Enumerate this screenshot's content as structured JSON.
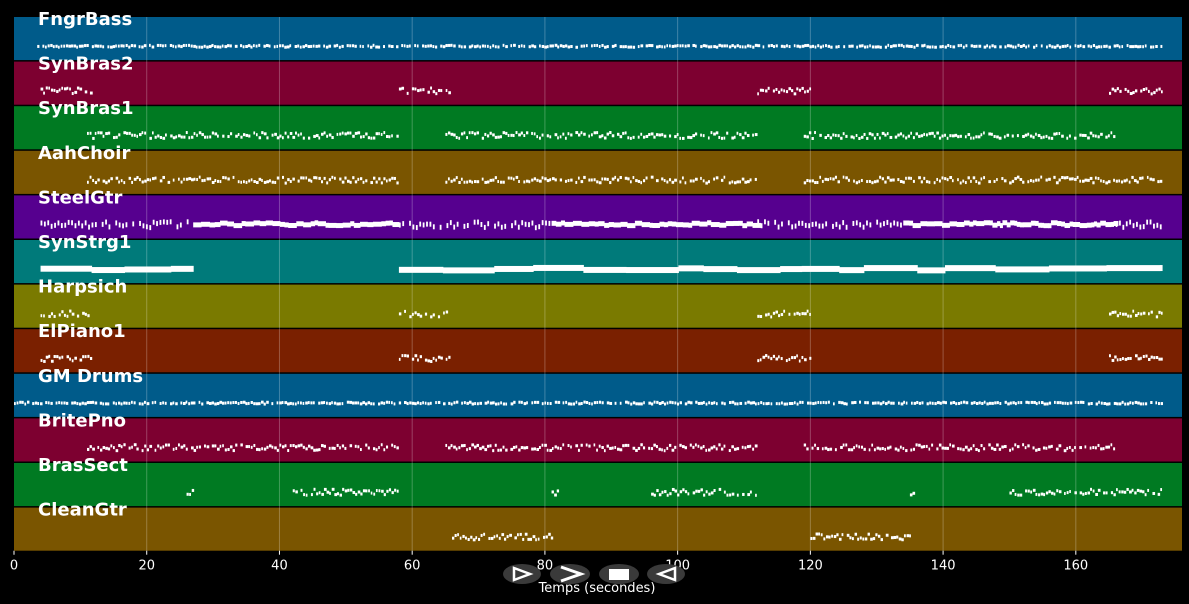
{
  "chart_data": {
    "type": "piano-roll",
    "xlabel": "Temps (secondes)",
    "xlim": [
      0,
      176
    ],
    "x_ticks": [
      0,
      20,
      40,
      60,
      80,
      100,
      120,
      140,
      160
    ],
    "grid": true,
    "tracks": [
      {
        "name": "FngrBass",
        "color": "#005b8a",
        "pattern": "continuous-dots",
        "segments": [
          [
            3.5,
            173
          ]
        ]
      },
      {
        "name": "SynBras2",
        "color": "#7d0030",
        "pattern": "dots",
        "segments": [
          [
            4,
            11.5
          ],
          [
            58,
            65.5
          ],
          [
            112,
            120
          ],
          [
            165,
            173
          ]
        ]
      },
      {
        "name": "SynBras1",
        "color": "#007a22",
        "pattern": "dots",
        "segments": [
          [
            11,
            58
          ],
          [
            65,
            112
          ],
          [
            119,
            166
          ]
        ]
      },
      {
        "name": "AahChoir",
        "color": "#7a5500",
        "pattern": "dots",
        "segments": [
          [
            11,
            58
          ],
          [
            65,
            112
          ],
          [
            119,
            173
          ]
        ]
      },
      {
        "name": "SteelGtr",
        "color": "#56008f",
        "pattern": "mixed",
        "segments": [
          [
            4,
            27
          ],
          [
            27,
            58
          ],
          [
            58,
            81
          ],
          [
            81,
            112
          ],
          [
            112,
            134
          ],
          [
            134,
            166
          ],
          [
            166,
            173
          ]
        ]
      },
      {
        "name": "SynStrg1",
        "color": "#007a7a",
        "pattern": "solid-bar",
        "segments": [
          [
            4,
            27
          ],
          [
            58,
            173
          ]
        ]
      },
      {
        "name": "Harpsich",
        "color": "#7a7a00",
        "pattern": "dots",
        "segments": [
          [
            4,
            11.5
          ],
          [
            58,
            65.5
          ],
          [
            112,
            120
          ],
          [
            165,
            173
          ]
        ]
      },
      {
        "name": "ElPiano1",
        "color": "#7a2000",
        "pattern": "dots",
        "segments": [
          [
            4,
            11.5
          ],
          [
            58,
            65.5
          ],
          [
            112,
            120
          ],
          [
            165,
            173
          ]
        ]
      },
      {
        "name": "GM Drums",
        "color": "#005b8a",
        "pattern": "continuous-dots",
        "segments": [
          [
            0,
            173
          ]
        ]
      },
      {
        "name": "BritePno",
        "color": "#7d0030",
        "pattern": "dots",
        "segments": [
          [
            11,
            58
          ],
          [
            65,
            112
          ],
          [
            119,
            166
          ]
        ]
      },
      {
        "name": "BrasSect",
        "color": "#007a22",
        "pattern": "dots",
        "segments": [
          [
            26,
            27
          ],
          [
            42,
            58
          ],
          [
            81,
            82
          ],
          [
            96,
            112
          ],
          [
            135,
            136
          ],
          [
            150,
            173
          ]
        ]
      },
      {
        "name": "CleanGtr",
        "color": "#7a5500",
        "pattern": "dots",
        "segments": [
          [
            66,
            81
          ],
          [
            120,
            135
          ]
        ]
      }
    ]
  },
  "controls": {
    "prev_icon": "triangle-right-outline-icon",
    "play_icon": "play-chevron-icon",
    "stop_icon": "stop-square-icon",
    "next_icon": "triangle-left-outline-icon"
  }
}
